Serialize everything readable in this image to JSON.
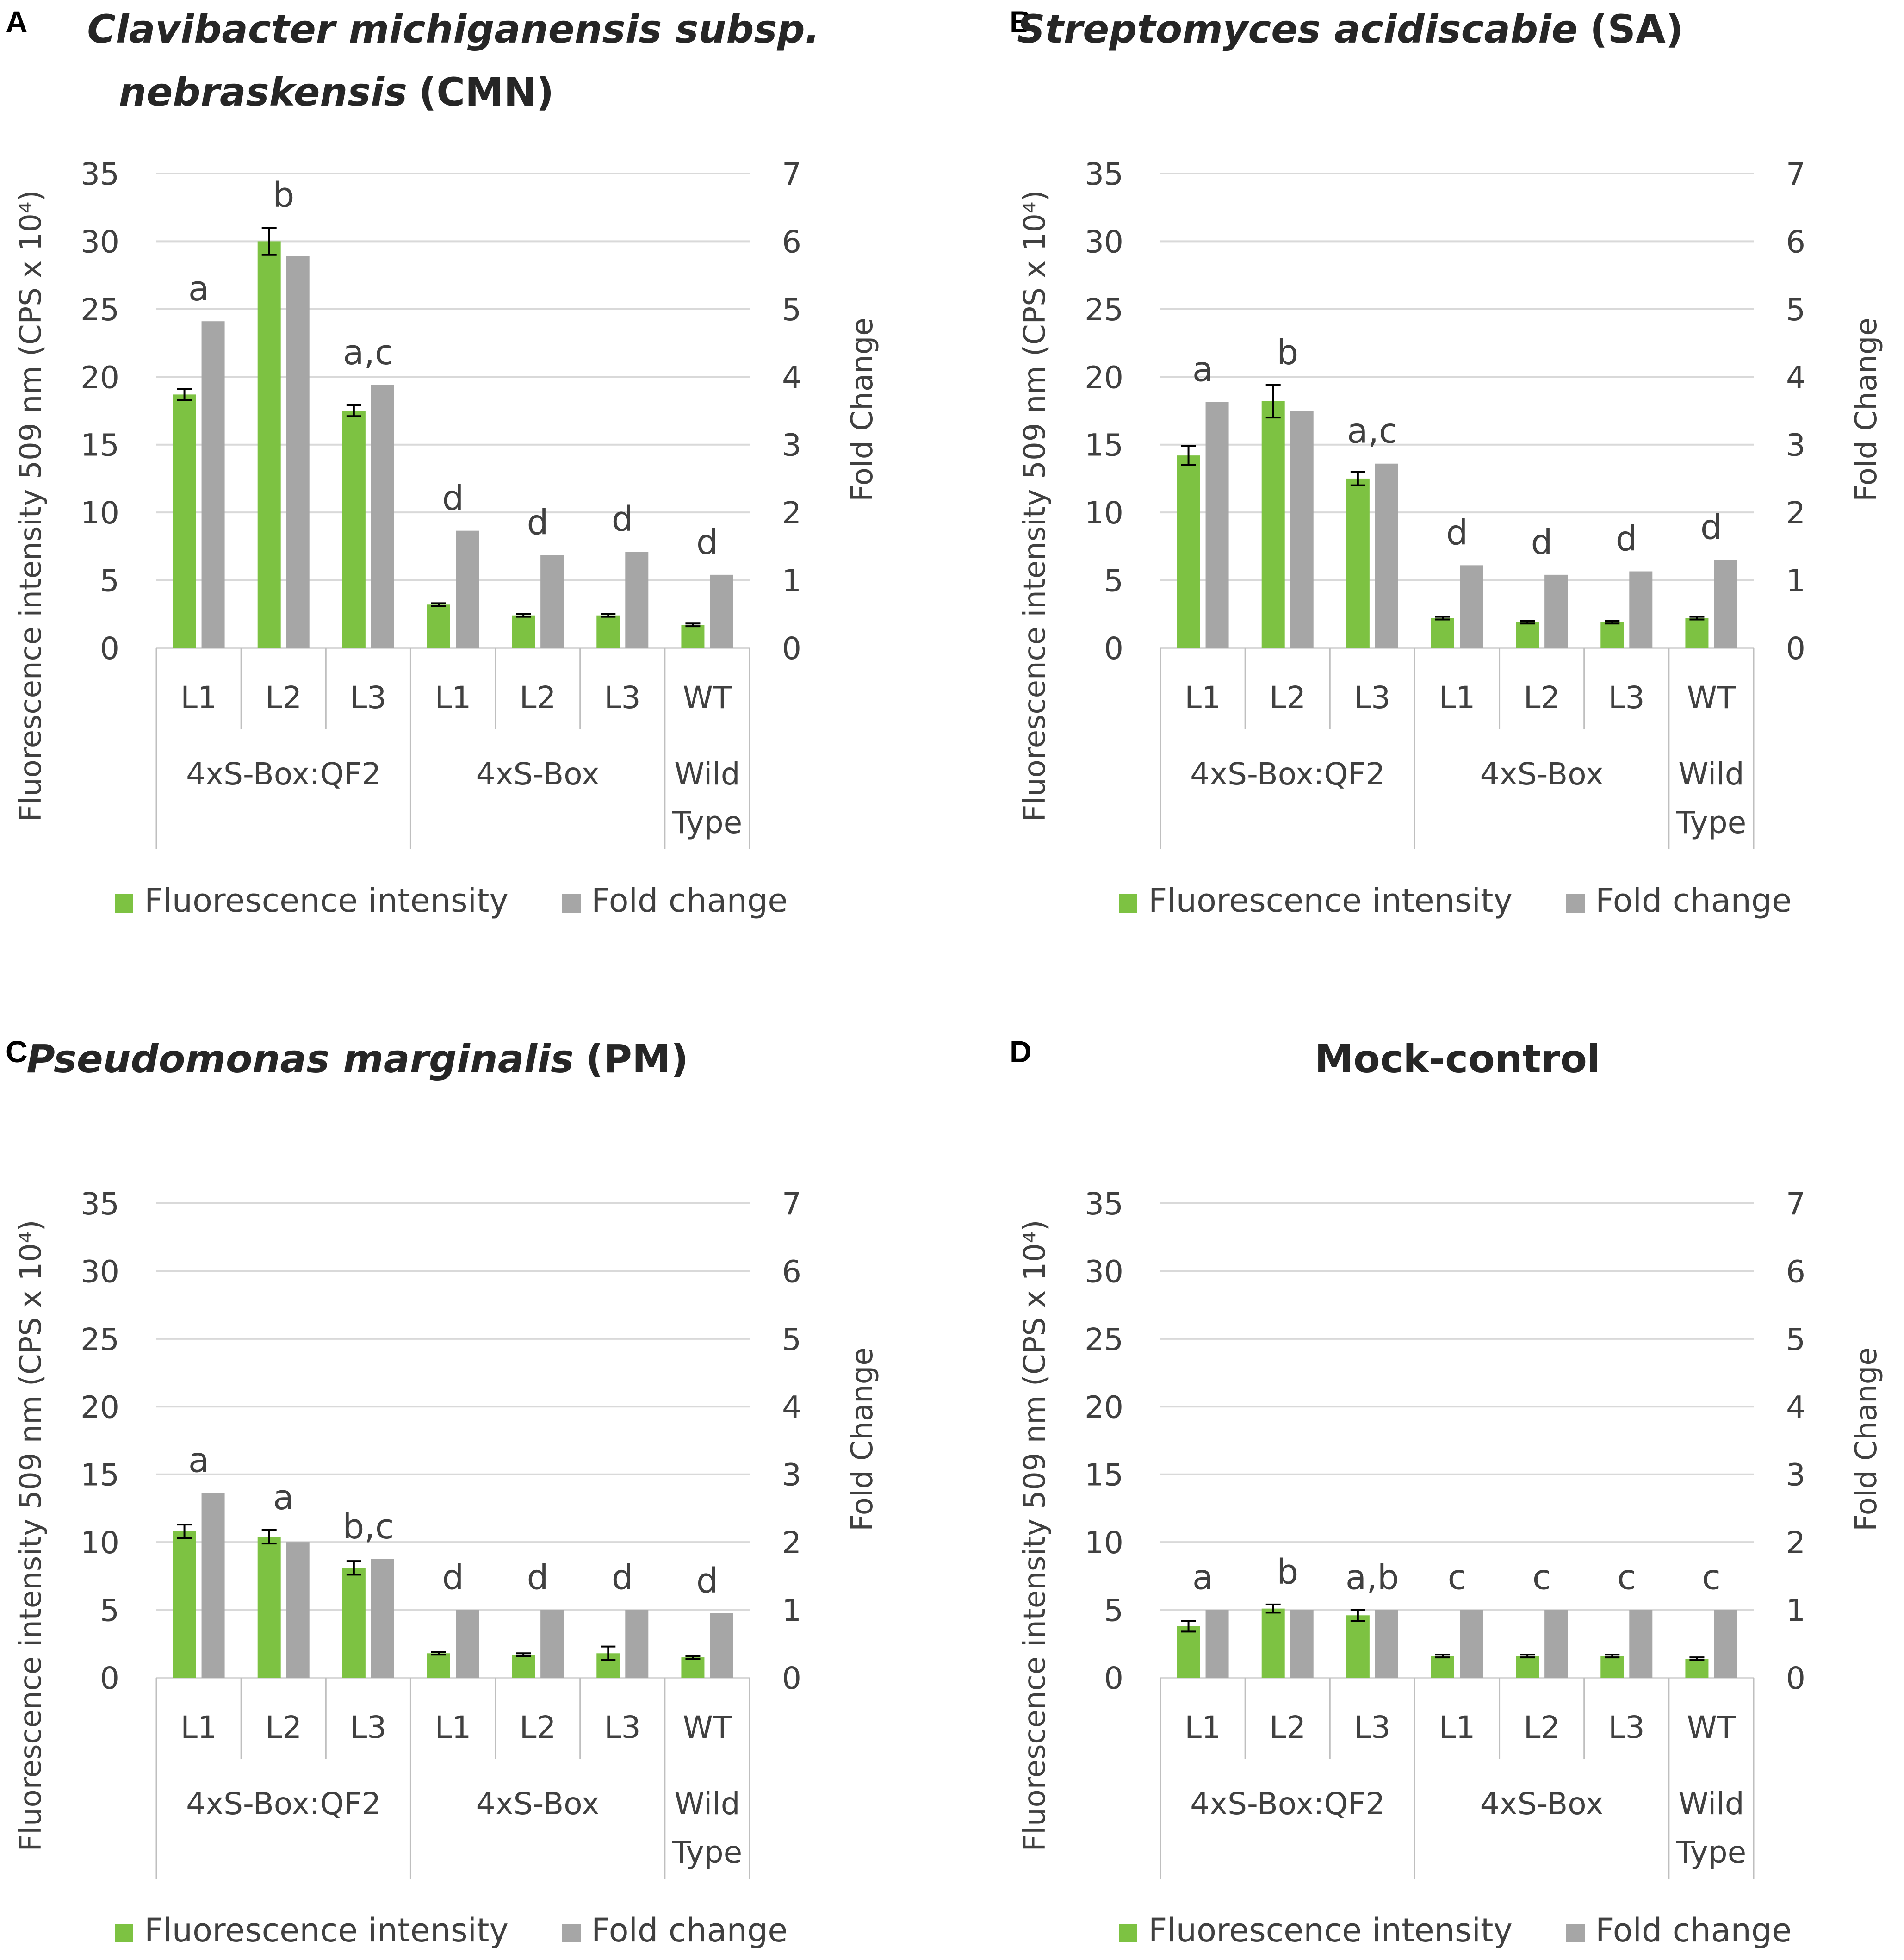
{
  "chart_data": [
    {
      "panel": "A",
      "type": "bar",
      "title_italic": "Clavibacter michiganensis subsp. nebraskensis",
      "title_plain": "(CMN)",
      "title_line1": "Clavibacter michiganensis subsp.",
      "title_line2_italic": "nebraskensis",
      "title_line2_plain": "(CMN)",
      "categories": [
        "L1",
        "L2",
        "L3",
        "L1",
        "L2",
        "L3",
        "WT"
      ],
      "groups": [
        {
          "label": "4xS-Box:QF2",
          "start": 0,
          "end": 2
        },
        {
          "label": "4xS-Box",
          "start": 3,
          "end": 5
        },
        {
          "label": "Wild Type",
          "start": 6,
          "end": 6
        }
      ],
      "ylabel": "Fluorescence intensity 509 nm (CPS x 10⁴)",
      "y2label": "Fold Change",
      "ylim": [
        0,
        35
      ],
      "yticks": [
        0,
        5,
        10,
        15,
        20,
        25,
        30,
        35
      ],
      "y2lim": [
        0,
        7
      ],
      "y2ticks": [
        0,
        1,
        2,
        3,
        4,
        5,
        6,
        7
      ],
      "series": [
        {
          "name": "Fluorescence intensity",
          "axis": "left",
          "values": [
            18.7,
            30.0,
            17.5,
            3.2,
            2.4,
            2.4,
            1.7
          ],
          "errors": [
            0.4,
            1.0,
            0.4,
            0.1,
            0.1,
            0.1,
            0.1
          ]
        },
        {
          "name": "Fold change",
          "axis": "right",
          "values": [
            4.82,
            5.78,
            3.88,
            1.73,
            1.37,
            1.42,
            1.08
          ]
        }
      ],
      "annotations": [
        "a",
        "b",
        "a,c",
        "d",
        "d",
        "d",
        "d"
      ]
    },
    {
      "panel": "B",
      "type": "bar",
      "title_italic": "Streptomyces acidiscabie",
      "title_plain": "(SA)",
      "categories": [
        "L1",
        "L2",
        "L3",
        "L1",
        "L2",
        "L3",
        "WT"
      ],
      "groups": [
        {
          "label": "4xS-Box:QF2",
          "start": 0,
          "end": 2
        },
        {
          "label": "4xS-Box",
          "start": 3,
          "end": 5
        },
        {
          "label": "Wild Type",
          "start": 6,
          "end": 6
        }
      ],
      "ylabel": "Fluorescence intensity 509 nm (CPS x 10⁴)",
      "y2label": "Fold Change",
      "ylim": [
        0,
        35
      ],
      "yticks": [
        0,
        5,
        10,
        15,
        20,
        25,
        30,
        35
      ],
      "y2lim": [
        0,
        7
      ],
      "y2ticks": [
        0,
        1,
        2,
        3,
        4,
        5,
        6,
        7
      ],
      "series": [
        {
          "name": "Fluorescence intensity",
          "axis": "left",
          "values": [
            14.2,
            18.2,
            12.5,
            2.2,
            1.9,
            1.9,
            2.2
          ],
          "errors": [
            0.7,
            1.2,
            0.5,
            0.1,
            0.1,
            0.1,
            0.1
          ]
        },
        {
          "name": "Fold change",
          "axis": "right",
          "values": [
            3.63,
            3.5,
            2.72,
            1.22,
            1.08,
            1.13,
            1.3
          ]
        }
      ],
      "annotations": [
        "a",
        "b",
        "a,c",
        "d",
        "d",
        "d",
        "d"
      ]
    },
    {
      "panel": "C",
      "type": "bar",
      "title_italic": "Pseudomonas marginalis",
      "title_plain": "(PM)",
      "categories": [
        "L1",
        "L2",
        "L3",
        "L1",
        "L2",
        "L3",
        "WT"
      ],
      "groups": [
        {
          "label": "4xS-Box:QF2",
          "start": 0,
          "end": 2
        },
        {
          "label": "4xS-Box",
          "start": 3,
          "end": 5
        },
        {
          "label": "Wild Type",
          "start": 6,
          "end": 6
        }
      ],
      "ylabel": "Fluorescence intensity 509 nm (CPS x 10⁴)",
      "y2label": "Fold Change",
      "ylim": [
        0,
        35
      ],
      "yticks": [
        0,
        5,
        10,
        15,
        20,
        25,
        30,
        35
      ],
      "y2lim": [
        0,
        7
      ],
      "y2ticks": [
        0,
        1,
        2,
        3,
        4,
        5,
        6,
        7
      ],
      "series": [
        {
          "name": "Fluorescence intensity",
          "axis": "left",
          "values": [
            10.8,
            10.4,
            8.1,
            1.8,
            1.7,
            1.8,
            1.5
          ],
          "errors": [
            0.5,
            0.5,
            0.5,
            0.1,
            0.1,
            0.5,
            0.1
          ]
        },
        {
          "name": "Fold change",
          "axis": "right",
          "values": [
            2.73,
            2.0,
            1.75,
            1.0,
            1.0,
            1.0,
            0.95
          ]
        }
      ],
      "annotations": [
        "a",
        "a",
        "b,c",
        "d",
        "d",
        "d",
        "d"
      ]
    },
    {
      "panel": "D",
      "type": "bar",
      "title_bold": "Mock-control",
      "categories": [
        "L1",
        "L2",
        "L3",
        "L1",
        "L2",
        "L3",
        "WT"
      ],
      "groups": [
        {
          "label": "4xS-Box:QF2",
          "start": 0,
          "end": 2
        },
        {
          "label": "4xS-Box",
          "start": 3,
          "end": 5
        },
        {
          "label": "Wild Type",
          "start": 6,
          "end": 6
        }
      ],
      "ylabel": "Fluorescence intensity 509 nm (CPS x 10⁴)",
      "y2label": "Fold Change",
      "ylim": [
        0,
        35
      ],
      "yticks": [
        0,
        5,
        10,
        15,
        20,
        25,
        30,
        35
      ],
      "y2lim": [
        0,
        7
      ],
      "y2ticks": [
        0,
        1,
        2,
        3,
        4,
        5,
        6,
        7
      ],
      "series": [
        {
          "name": "Fluorescence intensity",
          "axis": "left",
          "values": [
            3.8,
            5.1,
            4.6,
            1.6,
            1.6,
            1.6,
            1.4
          ],
          "errors": [
            0.4,
            0.3,
            0.4,
            0.1,
            0.1,
            0.1,
            0.1
          ]
        },
        {
          "name": "Fold change",
          "axis": "right",
          "values": [
            1.0,
            1.0,
            1.0,
            1.0,
            1.0,
            1.0,
            1.0
          ]
        }
      ],
      "annotations": [
        "a",
        "b",
        "a,b",
        "c",
        "c",
        "c",
        "c"
      ]
    }
  ],
  "legend": {
    "fluorescence": "Fluorescence intensity",
    "fold": "Fold change"
  },
  "colors": {
    "green": "#7dc242",
    "green_dark": "#5ea32f",
    "gray": "#a6a6a6",
    "grid": "#d9d9d9",
    "axis_text": "#404040"
  }
}
